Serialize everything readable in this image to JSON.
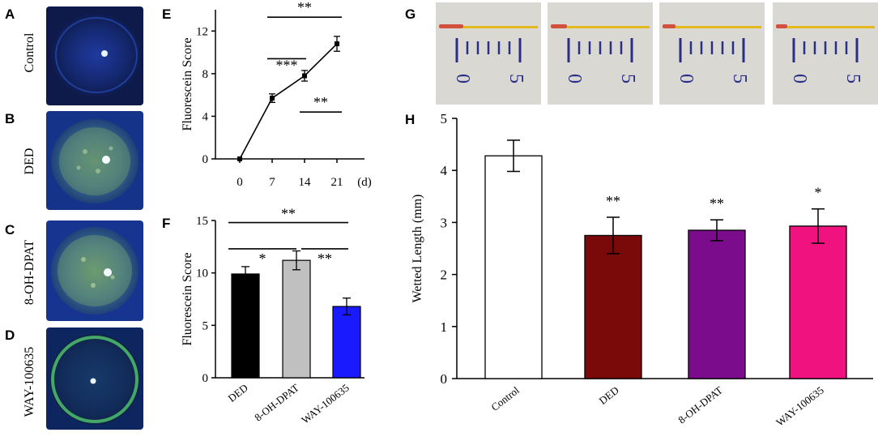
{
  "panel_labels": {
    "A": "A",
    "B": "B",
    "C": "C",
    "D": "D",
    "E": "E",
    "F": "F",
    "G": "G",
    "H": "H"
  },
  "eye_images": [
    {
      "label": "Control"
    },
    {
      "label": "DED"
    },
    {
      "label": "8-OH-DPAT"
    },
    {
      "label": "WAY-100635"
    }
  ],
  "strip_images": [
    {
      "scale_left": "0",
      "scale_right": "5"
    },
    {
      "scale_left": "0",
      "scale_right": "5"
    },
    {
      "scale_left": "0",
      "scale_right": "5"
    },
    {
      "scale_left": "0",
      "scale_right": "5"
    }
  ],
  "colors": {
    "black": "#000000",
    "gray": "#c0c0c0",
    "blue": "#1a1aff",
    "white": "#ffffff",
    "maroon": "#7a0a0a",
    "purple": "#7b0d8c",
    "pink": "#f0127e"
  },
  "chart_data": [
    {
      "id": "E",
      "type": "line",
      "x": [
        0,
        7,
        14,
        21
      ],
      "y": [
        0,
        5.7,
        7.8,
        10.8
      ],
      "err": [
        0,
        0.4,
        0.5,
        0.7
      ],
      "xtick_labels": [
        "0",
        "7",
        "14",
        "21"
      ],
      "x_unit": "(d)",
      "ylabel": "Fluorescein Score",
      "ylim": [
        0,
        14
      ],
      "yticks": [
        0,
        4,
        8,
        12
      ],
      "significance": [
        {
          "from": 7,
          "to": 21,
          "label": "**"
        },
        {
          "from": 7,
          "to": 14,
          "label": "***"
        },
        {
          "from": 14,
          "to": 21,
          "label": "**"
        }
      ]
    },
    {
      "id": "F",
      "type": "bar",
      "categories": [
        "DED",
        "8-OH-DPAT",
        "WAY-100635"
      ],
      "values": [
        9.9,
        11.2,
        6.8
      ],
      "err": [
        0.7,
        0.9,
        0.8
      ],
      "colors": [
        "#000000",
        "#c0c0c0",
        "#1a1aff"
      ],
      "ylabel": "Fluorescein Score",
      "ylim": [
        0,
        15
      ],
      "yticks": [
        0,
        5,
        10,
        15
      ],
      "significance": [
        {
          "from": 0,
          "to": 2,
          "label": "**"
        },
        {
          "from": 0,
          "to": 1,
          "label": "*"
        },
        {
          "from": 1,
          "to": 2,
          "label": "**"
        }
      ]
    },
    {
      "id": "H",
      "type": "bar",
      "categories": [
        "Control",
        "DED",
        "8-OH-DPAT",
        "WAY-100635"
      ],
      "values": [
        4.28,
        2.75,
        2.85,
        2.93
      ],
      "err": [
        0.3,
        0.35,
        0.2,
        0.33
      ],
      "colors": [
        "#ffffff",
        "#7a0a0a",
        "#7b0d8c",
        "#f0127e"
      ],
      "ylabel": "Wetted Length (mm)",
      "ylim": [
        0,
        5
      ],
      "yticks": [
        0,
        1,
        2,
        3,
        4,
        5
      ],
      "bar_annotations": [
        "",
        "**",
        "**",
        "*"
      ]
    }
  ]
}
